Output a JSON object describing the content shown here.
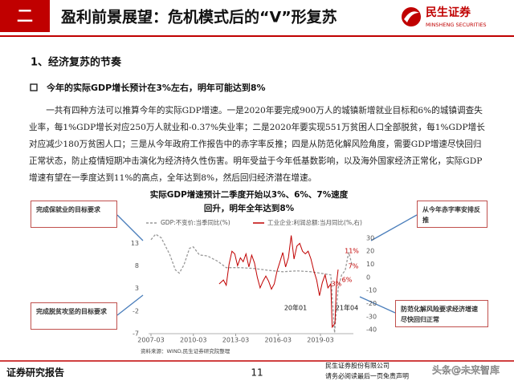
{
  "header": {
    "section": "二",
    "title": "盈利前景展望：危机模式后的“V”形复苏",
    "logo_cn": "民生证券",
    "logo_en": "MINSHENG SECURITIES"
  },
  "heading": "1、经济复苏的节奏",
  "bullet": "今年的实际GDP增长预计在3%左右，明年可能达到8%",
  "paragraph": "一共有四种方法可以推算今年的实际GDP增速。一是2020年要完成900万人的城镇新增就业目标和6%的城镇调查失业率，每1%GDP增长对应250万人就业和-0.37%失业率；二是2020年要实现551万贫困人口全部脱贫，每1%GDP增长对应减少180万贫困人口；三是从今年政府工作报告中的赤字率反推；四是从防范化解风险角度，需要GDP增速尽快回归正常状态，防止疫情短期冲击演化为经济持久性伤害。明年受益于今年低基数影响，以及海外国家经济正常化，实际GDP增速有望在一季度达到11%的高点，全年达到8%，然后回归经济潜在增速。",
  "chart": {
    "type": "line",
    "title": [
      "实际GDP增速预计二季度开始以3%、6%、7%速度",
      "回升，明年全年达到8%"
    ],
    "xlim": [
      2007,
      2021.5
    ],
    "xticks": [
      {
        "value": 2007.17,
        "label": "2007-03"
      },
      {
        "value": 2010.17,
        "label": "2010-03"
      },
      {
        "value": 2013.17,
        "label": "2013-03"
      },
      {
        "value": 2016.17,
        "label": "2016-03"
      },
      {
        "value": 2019.17,
        "label": "2019-03"
      }
    ],
    "ylim": [
      -7,
      15
    ],
    "yticks": [
      -7,
      -2,
      3,
      8,
      13
    ],
    "y2lim": [
      -43,
      33
    ],
    "y2ticks": [
      -40,
      -30,
      -20,
      -10,
      0,
      10,
      20,
      30
    ],
    "series": [
      {
        "name": "GDP:不变价:当季同比(%)",
        "color": "#999999",
        "dashed": true,
        "x": [
          2007.17,
          2007.5,
          2007.9,
          2008.5,
          2008.9,
          2009.17,
          2009.5,
          2009.9,
          2010.17,
          2010.6,
          2011.17,
          2011.9,
          2012.5,
          2013.5,
          2014.5,
          2015.5,
          2016.5,
          2017.5,
          2018.5,
          2019.5,
          2019.9,
          2020.17,
          2020.42,
          2020.67,
          2020.92,
          2021.17,
          2021.42
        ],
        "values": [
          13.8,
          15,
          14.2,
          10.5,
          7.1,
          6.4,
          8.2,
          11.9,
          12.2,
          10.4,
          10.2,
          9,
          7.6,
          7.6,
          7.4,
          7,
          6.7,
          6.9,
          6.7,
          6.2,
          6,
          -6.8,
          3,
          6,
          7,
          11,
          8
        ]
      },
      {
        "name": "工业企业:利润总额:当月同比(%,右)",
        "color": "#c00000",
        "axis": "y2",
        "x": [
          2012.0,
          2012.3,
          2012.5,
          2012.7,
          2012.9,
          2013.1,
          2013.3,
          2013.5,
          2013.7,
          2013.9,
          2014.1,
          2014.3,
          2014.5,
          2014.7,
          2014.9,
          2015.1,
          2015.3,
          2015.5,
          2015.7,
          2015.9,
          2016.1,
          2016.3,
          2016.5,
          2016.7,
          2016.9,
          2017.1,
          2017.3,
          2017.5,
          2017.7,
          2017.9,
          2018.1,
          2018.3,
          2018.5,
          2018.7,
          2018.9,
          2019.1,
          2019.3,
          2019.5,
          2019.7,
          2019.9,
          2020.0,
          2020.2,
          2020.3,
          2020.42
        ],
        "values": [
          -5,
          -2,
          -6,
          10,
          20,
          18,
          9,
          15,
          12,
          18,
          8,
          17,
          11,
          0,
          -8,
          -3,
          1,
          -3,
          -9,
          -5,
          5,
          12,
          19,
          8,
          15,
          32,
          14,
          24,
          26,
          20,
          18,
          20,
          14,
          5,
          -2,
          -14,
          -4,
          2,
          -8,
          -5,
          -38,
          -35,
          -5,
          6
        ]
      }
    ],
    "annotations": [
      "20年01",
      "21年04",
      "11%",
      "7%",
      "6%",
      "3%"
    ],
    "source": "资料来源：WIND,民生证券研究院整理"
  },
  "callouts": [
    "完成保就业的目标要求",
    "完成脱贫攻坚的目标要求",
    "从今年赤字率安排反推",
    "防范化解风险要求经济增速尽快回归正常"
  ],
  "footer": {
    "label": "证券研究报告",
    "page": "11",
    "company": "民生证券股份有限公司",
    "disclaimer": "请务必阅读最后一页免责声明",
    "watermark": "头条@未来智库"
  }
}
